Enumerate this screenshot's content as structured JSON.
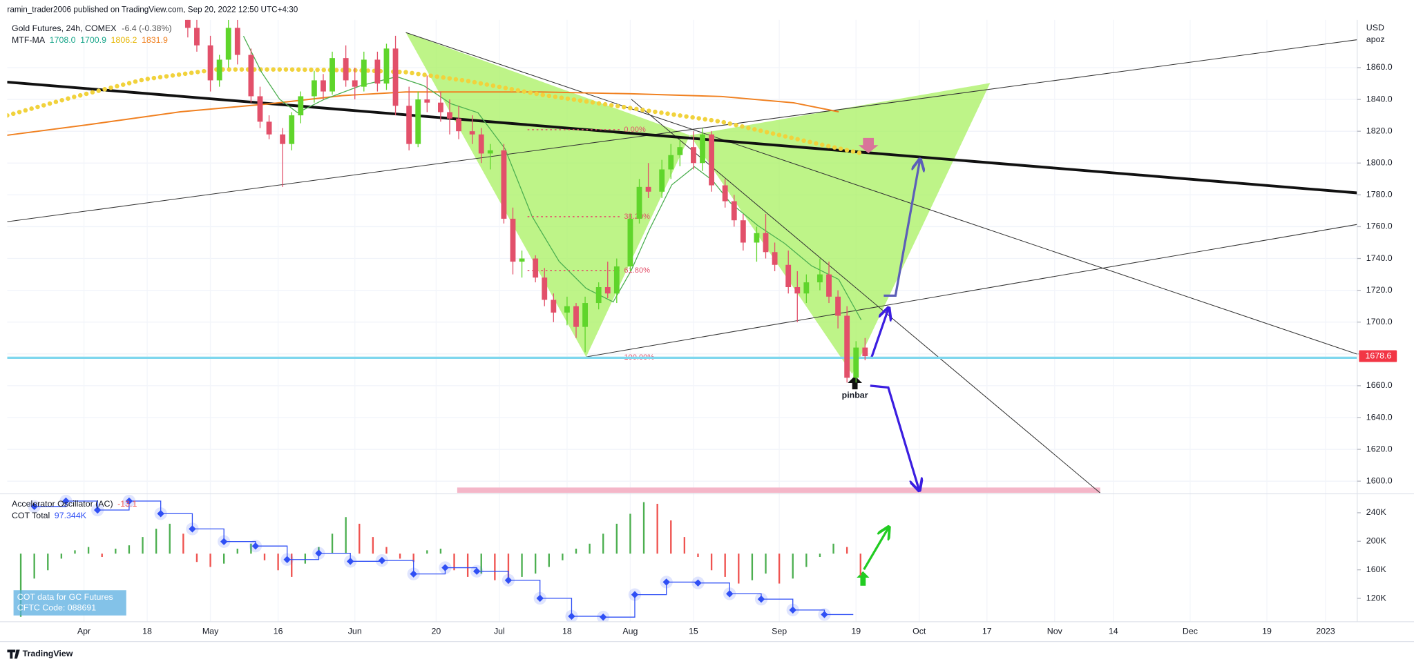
{
  "header": "ramin_trader2006 published on TradingView.com, Sep 20, 2022 12:50 UTC+4:30",
  "footer": "TradingView",
  "chart_data": [
    {
      "type": "candlestick",
      "title": "Gold Futures, 24h, COMEX",
      "change": "-6.4 (-0.38%)",
      "currency": "USD",
      "scale_label": "apoz",
      "annotation": "pinbar",
      "up_color": "#5fd52b",
      "down_color": "#e2506a",
      "grid": true,
      "xlim": [
        74,
        373
      ],
      "xticks": [
        {
          "value": 91,
          "label": "Apr"
        },
        {
          "value": 105,
          "label": "18"
        },
        {
          "value": 119,
          "label": "May"
        },
        {
          "value": 134,
          "label": "16"
        },
        {
          "value": 151,
          "label": "Jun"
        },
        {
          "value": 169,
          "label": "20"
        },
        {
          "value": 183,
          "label": "Jul"
        },
        {
          "value": 198,
          "label": "18"
        },
        {
          "value": 212,
          "label": "Aug"
        },
        {
          "value": 226,
          "label": "15"
        },
        {
          "value": 245,
          "label": "Sep"
        },
        {
          "value": 262,
          "label": "19"
        },
        {
          "value": 276,
          "label": "Oct"
        },
        {
          "value": 291,
          "label": "17"
        },
        {
          "value": 306,
          "label": "Nov"
        },
        {
          "value": 319,
          "label": "14"
        },
        {
          "value": 336,
          "label": "Dec"
        },
        {
          "value": 353,
          "label": "19"
        },
        {
          "value": 366,
          "label": "2023"
        }
      ],
      "ylim": [
        1592.6,
        1890
      ],
      "yticks": [
        {
          "value": 1600,
          "label": "1600.0"
        },
        {
          "value": 1620,
          "label": "1620.0"
        },
        {
          "value": 1640,
          "label": "1640.0"
        },
        {
          "value": 1660,
          "label": "1660.0"
        },
        {
          "value": 1680,
          "label": "1680.0"
        },
        {
          "value": 1700,
          "label": "1700.0"
        },
        {
          "value": 1720,
          "label": "1720.0"
        },
        {
          "value": 1740,
          "label": "1740.0"
        },
        {
          "value": 1760,
          "label": "1760.0"
        },
        {
          "value": 1780,
          "label": "1780.0"
        },
        {
          "value": 1800,
          "label": "1800.0"
        },
        {
          "value": 1820,
          "label": "1820.0"
        },
        {
          "value": 1840,
          "label": "1840.0"
        },
        {
          "value": 1860,
          "label": "1860.0"
        }
      ],
      "last_price": 1678.6,
      "last_price_color": "#f23645",
      "indicators": [
        {
          "name": "MTF-MA",
          "values": [
            1708,
            1700.9,
            1806.2,
            1831.9
          ],
          "value_labels": [
            "1708.0",
            "1700.9",
            "1806.2",
            "1831.9"
          ],
          "colors": [
            "#17a589",
            "#17a589",
            "#e5b500",
            "#f08020"
          ]
        }
      ],
      "fib_levels": [
        {
          "label": "0.00%",
          "value": 1821
        },
        {
          "label": "38.20%",
          "value": 1766.3
        },
        {
          "label": "61.80%",
          "value": 1732.4
        },
        {
          "label": "100.00%",
          "value": 1677.6
        }
      ],
      "x": [
        114,
        116,
        119,
        121,
        123,
        125,
        128,
        130,
        132,
        135,
        137,
        139,
        142,
        144,
        146,
        149,
        151,
        153,
        156,
        158,
        160,
        163,
        165,
        167,
        170,
        172,
        174,
        177,
        179,
        181,
        184,
        186,
        188,
        191,
        193,
        195,
        198,
        200,
        202,
        205,
        207,
        209,
        212,
        214,
        216,
        219,
        221,
        223,
        226,
        228,
        230,
        233,
        235,
        237,
        240,
        242,
        244,
        247,
        249,
        251,
        254,
        256,
        258,
        260,
        262,
        264
      ],
      "open": [
        1893,
        1885,
        1874,
        1852,
        1865,
        1885,
        1868,
        1842,
        1826,
        1818,
        1812,
        1830,
        1842,
        1852,
        1845,
        1866,
        1852,
        1848,
        1865,
        1850,
        1872,
        1836,
        1812,
        1840,
        1838,
        1832,
        1828,
        1820,
        1818,
        1806,
        1808,
        1765,
        1738,
        1740,
        1728,
        1714,
        1706,
        1710,
        1697,
        1712,
        1722,
        1718,
        1735,
        1765,
        1785,
        1782,
        1796,
        1805,
        1810,
        1800,
        1818,
        1786,
        1776,
        1764,
        1750,
        1756,
        1744,
        1736,
        1722,
        1718,
        1725,
        1730,
        1716,
        1704,
        1665,
        1684
      ],
      "high": [
        1898,
        1892,
        1880,
        1868,
        1890,
        1890,
        1872,
        1848,
        1830,
        1822,
        1832,
        1845,
        1858,
        1856,
        1870,
        1874,
        1860,
        1870,
        1870,
        1875,
        1880,
        1848,
        1845,
        1855,
        1845,
        1840,
        1836,
        1830,
        1822,
        1812,
        1812,
        1772,
        1745,
        1742,
        1734,
        1718,
        1716,
        1712,
        1716,
        1725,
        1738,
        1740,
        1768,
        1790,
        1800,
        1802,
        1812,
        1815,
        1820,
        1822,
        1820,
        1790,
        1780,
        1768,
        1760,
        1768,
        1750,
        1745,
        1732,
        1730,
        1740,
        1738,
        1720,
        1710,
        1688,
        1690
      ],
      "low": [
        1879,
        1870,
        1845,
        1848,
        1860,
        1862,
        1838,
        1822,
        1815,
        1785,
        1808,
        1825,
        1838,
        1840,
        1843,
        1848,
        1840,
        1845,
        1845,
        1846,
        1830,
        1808,
        1810,
        1832,
        1826,
        1818,
        1815,
        1812,
        1800,
        1796,
        1762,
        1730,
        1728,
        1725,
        1710,
        1700,
        1698,
        1690,
        1681,
        1708,
        1715,
        1712,
        1732,
        1762,
        1778,
        1778,
        1790,
        1798,
        1796,
        1795,
        1782,
        1772,
        1760,
        1745,
        1738,
        1740,
        1732,
        1718,
        1700,
        1712,
        1720,
        1712,
        1696,
        1662,
        1662,
        1676
      ],
      "close": [
        1885,
        1874,
        1852,
        1865,
        1885,
        1868,
        1842,
        1826,
        1818,
        1812,
        1830,
        1842,
        1852,
        1845,
        1866,
        1852,
        1848,
        1865,
        1850,
        1872,
        1836,
        1812,
        1840,
        1838,
        1832,
        1828,
        1820,
        1818,
        1806,
        1808,
        1765,
        1738,
        1740,
        1728,
        1714,
        1706,
        1710,
        1697,
        1712,
        1722,
        1718,
        1735,
        1765,
        1785,
        1782,
        1796,
        1805,
        1810,
        1800,
        1818,
        1786,
        1776,
        1764,
        1750,
        1756,
        1744,
        1736,
        1722,
        1718,
        1725,
        1730,
        1716,
        1704,
        1665,
        1684,
        1678.6
      ]
    },
    {
      "type": "indicator",
      "xlim": [
        74,
        373
      ],
      "ylim": [
        -41,
        36
      ],
      "y2lim": [
        87200,
        266500
      ],
      "y2ticks": [
        {
          "value": 120000,
          "label": "120K"
        },
        {
          "value": 160000,
          "label": "160K"
        },
        {
          "value": 200000,
          "label": "200K"
        },
        {
          "value": 240000,
          "label": "240K"
        }
      ],
      "info_box": [
        "COT data for GC Futures",
        "CFTC Code: 088691"
      ],
      "series": [
        {
          "name": "Accelerator Oscillator (AC)",
          "up_color": "#4caf50",
          "down_color": "#ef5350",
          "last_value": -13.1,
          "x": [
            77,
            80,
            83,
            86,
            89,
            92,
            95,
            98,
            101,
            104,
            107,
            110,
            113,
            116,
            119,
            122,
            125,
            128,
            131,
            134,
            137,
            140,
            143,
            146,
            149,
            152,
            155,
            158,
            161,
            164,
            167,
            170,
            173,
            176,
            179,
            182,
            185,
            188,
            191,
            194,
            197,
            200,
            203,
            206,
            209,
            212,
            215,
            218,
            221,
            224,
            227,
            230,
            233,
            236,
            239,
            242,
            245,
            248,
            251,
            254,
            257,
            260,
            263
          ],
          "values": [
            -38,
            -15,
            -10,
            -3,
            2,
            4,
            -2,
            3,
            5,
            10,
            15,
            18,
            12,
            -5,
            -8,
            -6,
            3,
            6,
            -4,
            -10,
            -14,
            -6,
            4,
            12,
            22,
            18,
            10,
            4,
            -3,
            -5,
            2,
            3,
            -10,
            -14,
            -12,
            -16,
            -18,
            -14,
            -12,
            -8,
            -4,
            3,
            6,
            12,
            18,
            24,
            31,
            30,
            20,
            10,
            -2,
            -10,
            -14,
            -18,
            -16,
            -12,
            -18,
            -15,
            -8,
            -2,
            6,
            4,
            -13.1
          ]
        },
        {
          "name": "COT Total",
          "color": "#2f4ff5",
          "axis": "y2",
          "last_value": 97344,
          "last_label": "97.344K",
          "x": [
            80,
            87,
            94,
            101,
            108,
            115,
            122,
            129,
            136,
            143,
            150,
            157,
            164,
            171,
            178,
            185,
            192,
            199,
            206,
            213,
            220,
            227,
            234,
            241,
            248,
            255
          ],
          "values": [
            248800,
            256400,
            243800,
            256400,
            238700,
            217300,
            199600,
            193300,
            174400,
            183200,
            171900,
            173100,
            154200,
            163000,
            158000,
            145400,
            120100,
            94900,
            93700,
            125200,
            142800,
            141600,
            126400,
            118900,
            103700,
            97344
          ]
        }
      ]
    }
  ]
}
